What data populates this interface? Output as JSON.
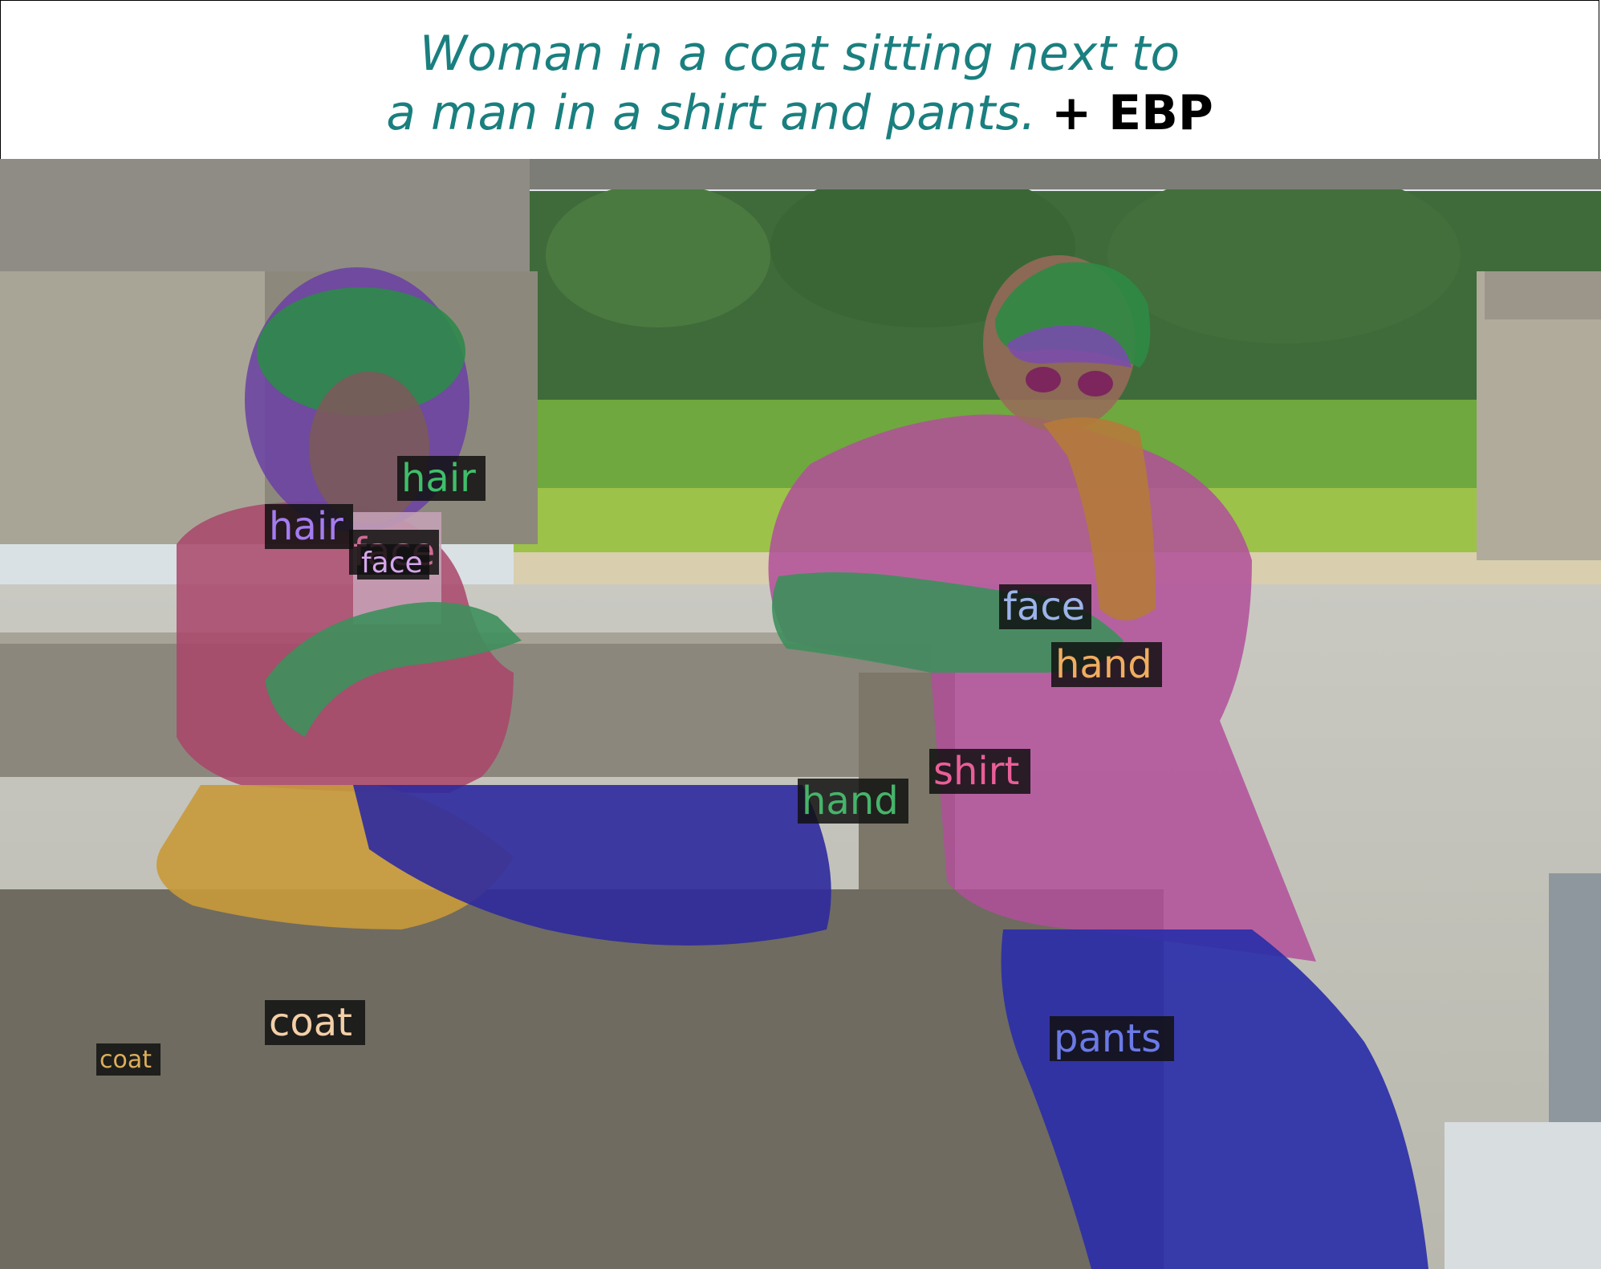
{
  "caption": {
    "line1": "Woman in a coat sitting next to",
    "line2": "a man in a shirt and pants.",
    "suffix": "+ EBP"
  },
  "labels": [
    {
      "id": "hair-1",
      "text": "hair",
      "color": "#2e9e4f"
    },
    {
      "id": "hair-2",
      "text": "hair",
      "color": "#8a4fd6"
    },
    {
      "id": "face-1",
      "text": "face",
      "color": "#c94f7c"
    },
    {
      "id": "face-2",
      "text": "face",
      "color": "#c58be0"
    },
    {
      "id": "face-3",
      "text": "face",
      "color": "#8fa8e0"
    },
    {
      "id": "hand-1",
      "text": "hand",
      "color": "#e8a050"
    },
    {
      "id": "shirt-1",
      "text": "shirt",
      "color": "#e0508a"
    },
    {
      "id": "hand-2",
      "text": "hand",
      "color": "#3aa35a"
    },
    {
      "id": "coat-1",
      "text": "coat",
      "color": "#f0c6a0"
    },
    {
      "id": "coat-2",
      "text": "coat",
      "color": "#d6a04a"
    },
    {
      "id": "pants-1",
      "text": "pants",
      "color": "#5a6ad6"
    }
  ],
  "colors": {
    "caption_text": "#1a7f7f",
    "caption_suffix": "#000000"
  }
}
